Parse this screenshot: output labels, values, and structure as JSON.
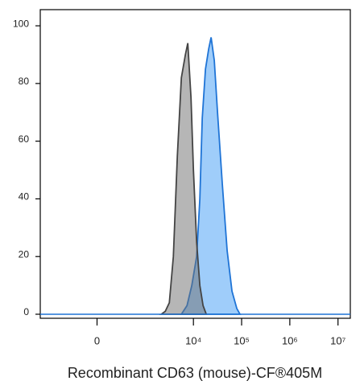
{
  "chart_data": {
    "type": "area",
    "x_label": "Recombinant CD63 (mouse)-CF®405M",
    "x_scale": "biexponential",
    "xlim": [
      -1500,
      18000000
    ],
    "xticks": [
      0,
      {
        "value": 10000,
        "label": "10⁴"
      },
      {
        "value": 100000,
        "label": "10⁵"
      },
      {
        "value": 1000000,
        "label": "10⁶"
      },
      {
        "value": 10000000,
        "label": "10⁷"
      }
    ],
    "ylim": [
      -1.4,
      105.6
    ],
    "yticks": [
      0,
      20,
      40,
      60,
      80,
      100
    ],
    "series": [
      {
        "color": "#3f9bf5",
        "stroke": "#1f74d6",
        "x": [
          5620,
          7360,
          9260,
          11660,
          13590,
          15250,
          17780,
          20750,
          23280,
          27100,
          31620,
          39810,
          50120,
          63100,
          79430,
          92600
        ],
        "values": [
          0,
          3,
          10,
          20,
          40,
          68,
          85,
          92,
          96,
          88,
          70,
          45,
          22,
          8,
          2,
          0
        ]
      },
      {
        "color": "#6e6e6e",
        "stroke": "#444444",
        "x": [
          2145,
          2600,
          3160,
          3830,
          4640,
          5620,
          6810,
          7640,
          8910,
          10000,
          11660,
          13590,
          15850,
          18480
        ],
        "values": [
          0,
          1,
          4,
          20,
          55,
          82,
          90,
          94,
          75,
          50,
          25,
          10,
          3,
          0
        ]
      }
    ]
  }
}
